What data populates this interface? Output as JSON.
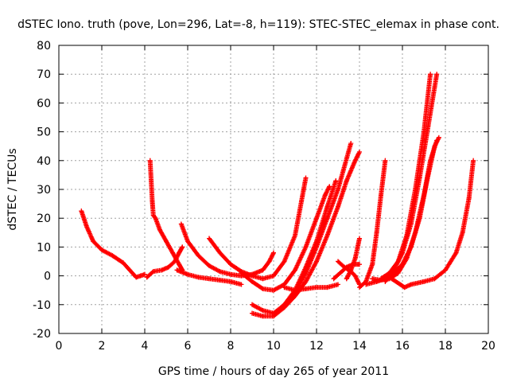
{
  "chart_data": {
    "type": "scatter",
    "title": "dSTEC Iono. truth (pove, Lon=296, Lat=-8, h=119): STEC-STEC_elemax in phase cont.",
    "xlabel": "GPS time / hours of day 265 of year 2011",
    "ylabel": "dSTEC  / TECUs",
    "xlim": [
      0,
      20
    ],
    "ylim": [
      -20,
      80
    ],
    "xticks": [
      0,
      2,
      4,
      6,
      8,
      10,
      12,
      14,
      16,
      18,
      20
    ],
    "yticks": [
      -20,
      -10,
      0,
      10,
      20,
      30,
      40,
      50,
      60,
      70,
      80
    ],
    "grid": true,
    "marker": "+",
    "color": "#ff0000",
    "series": [
      {
        "x": [
          1.05,
          1.3,
          1.6,
          2.0,
          2.5,
          3.0,
          3.3,
          3.6,
          3.8,
          4.0
        ],
        "y": [
          22.5,
          17,
          12,
          9,
          7,
          4.5,
          2,
          -0.5,
          0,
          0.5
        ]
      },
      {
        "x": [
          4.25,
          4.3,
          4.35,
          4.4,
          4.5,
          4.7,
          5.0,
          5.3,
          5.6,
          5.75
        ],
        "y": [
          40,
          33,
          26,
          21,
          20,
          16,
          12,
          8,
          4,
          2
        ]
      },
      {
        "x": [
          4.1,
          4.4,
          4.8,
          5.1,
          5.4,
          5.6,
          5.75
        ],
        "y": [
          -0.5,
          1.5,
          2,
          3,
          5,
          8,
          10
        ]
      },
      {
        "x": [
          5.7,
          6.0,
          6.5,
          7.0,
          7.5,
          8.0,
          8.5,
          9.0,
          9.5,
          9.8,
          10.0
        ],
        "y": [
          18,
          12,
          7,
          3.5,
          1.5,
          0.5,
          0,
          0.5,
          2,
          5,
          8
        ]
      },
      {
        "x": [
          5.5,
          6.0,
          6.5,
          7.0,
          7.5,
          8.0,
          8.5
        ],
        "y": [
          2,
          0.5,
          -0.5,
          -1,
          -1.5,
          -2,
          -3
        ]
      },
      {
        "x": [
          7.0,
          7.5,
          8.0,
          8.5,
          9.0,
          9.5,
          10.0,
          10.5,
          11.0,
          11.3,
          11.5
        ],
        "y": [
          13,
          8,
          4,
          1.5,
          0,
          -1,
          0,
          5,
          14,
          26,
          34
        ]
      },
      {
        "x": [
          8.5,
          9.0,
          9.5,
          10.0,
          10.5,
          11.0,
          11.5,
          12.0,
          12.4,
          12.6
        ],
        "y": [
          1,
          -2,
          -4.5,
          -5,
          -3,
          2,
          10,
          20,
          28,
          31
        ]
      },
      {
        "x": [
          9.0,
          9.5,
          10.0,
          10.5,
          11.0,
          11.5,
          12.0,
          12.5,
          12.9
        ],
        "y": [
          -10,
          -12,
          -13,
          -10,
          -5,
          3,
          12,
          24,
          33
        ]
      },
      {
        "x": [
          9.0,
          9.5,
          10.0,
          10.5,
          11.0,
          11.5,
          12.0,
          12.5,
          13.0,
          13.3,
          13.6
        ],
        "y": [
          -13,
          -14,
          -14,
          -11,
          -6,
          1,
          10,
          20,
          30,
          38,
          46
        ]
      },
      {
        "x": [
          10.0,
          10.5,
          11.0,
          11.5,
          12.0,
          12.5,
          13.0,
          13.4,
          13.8,
          14.0
        ],
        "y": [
          -13,
          -11,
          -7,
          -2,
          5,
          14,
          24,
          33,
          40,
          43
        ]
      },
      {
        "x": [
          10.5,
          11.0,
          11.5,
          12.0,
          12.5,
          13.0
        ],
        "y": [
          -4,
          -5,
          -4.5,
          -4,
          -4,
          -3
        ]
      },
      {
        "x": [
          12.8,
          13.1,
          13.4,
          13.7,
          14.0
        ],
        "y": [
          -1,
          1,
          3,
          4,
          4
        ]
      },
      {
        "x": [
          13.0,
          13.3,
          13.6,
          13.8,
          14.0
        ],
        "y": [
          5,
          3,
          1.5,
          0,
          -3
        ]
      },
      {
        "x": [
          13.4,
          13.6,
          13.8,
          14.0
        ],
        "y": [
          -1,
          2,
          6,
          13
        ]
      },
      {
        "x": [
          14.0,
          14.3,
          14.6,
          14.8,
          15.0,
          15.2
        ],
        "y": [
          -4,
          -2,
          4,
          15,
          28,
          40
        ]
      },
      {
        "x": [
          14.3,
          14.8,
          15.2,
          15.6,
          16.0,
          16.4,
          16.8,
          17.2,
          17.5,
          17.7
        ],
        "y": [
          -3,
          -2,
          -1,
          1,
          4,
          10,
          20,
          35,
          45,
          48
        ]
      },
      {
        "x": [
          14.6,
          15.0,
          15.4,
          15.8,
          16.2,
          16.6,
          17.0,
          17.3,
          17.6
        ],
        "y": [
          -1,
          -1.5,
          -1,
          1,
          6,
          15,
          28,
          40,
          47
        ]
      },
      {
        "x": [
          15.0,
          15.4,
          15.8,
          16.2,
          16.6,
          17.0,
          17.3
        ],
        "y": [
          -1,
          1,
          5,
          14,
          30,
          50,
          70
        ]
      },
      {
        "x": [
          15.2,
          15.6,
          16.0,
          16.4,
          16.8,
          17.2,
          17.6
        ],
        "y": [
          -2,
          2,
          8,
          18,
          34,
          52,
          70
        ]
      },
      {
        "x": [
          15.5,
          15.9,
          16.1,
          16.4,
          17.0,
          17.5,
          18.0,
          18.5,
          18.8,
          19.1,
          19.3
        ],
        "y": [
          -1,
          -3,
          -4,
          -3,
          -2,
          -1,
          2,
          8,
          15,
          27,
          40
        ]
      }
    ]
  }
}
